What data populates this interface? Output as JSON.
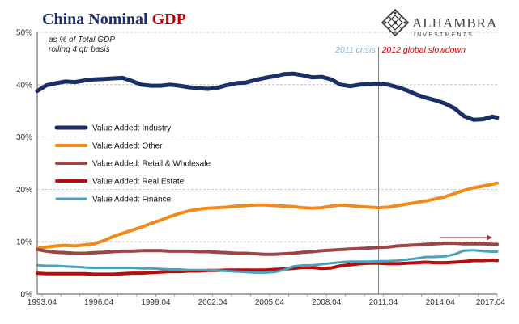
{
  "header": {
    "title_part1": "China Nominal ",
    "title_part2": "GDP",
    "title_color1": "#1f2d6b",
    "title_color2": "#c00000"
  },
  "brand": {
    "name": "ALHAMBRA",
    "sub": "INVESTMENTS",
    "icon": "diamond-lattice-logo"
  },
  "chart_data": {
    "type": "line",
    "subtitle_line1": "as % of Total GDP",
    "subtitle_line2": "rolling 4 qtr basis",
    "ylim": [
      0,
      50
    ],
    "yticks": [
      "0%",
      "10%",
      "20%",
      "30%",
      "40%",
      "50%"
    ],
    "xlim": [
      1993.0,
      2017.25
    ],
    "xtick_labels": [
      "1993.04",
      "1996.04",
      "1999.04",
      "2002.04",
      "2005.04",
      "2008.04",
      "2011.04",
      "2014.04",
      "2017.04"
    ],
    "grid": true,
    "legend_position": "middle-left",
    "annotations": [
      {
        "text": "2011 crisis",
        "x": 2011.0,
        "color": "#8fb0cc"
      },
      {
        "text": "2012 global slowdown",
        "x": 2011.0,
        "color": "#c00000"
      }
    ],
    "trend_arrow": {
      "x_start": 2014.25,
      "x_end": 2017.0,
      "y": 10.8,
      "color": "#a33a3a"
    },
    "series": [
      {
        "name": "Value Added: Industry",
        "color": "#1a2f66",
        "width": 5,
        "x": [
          1993.0,
          1993.5,
          1994.0,
          1994.5,
          1995.0,
          1995.5,
          1996.0,
          1996.5,
          1997.0,
          1997.5,
          1998.0,
          1998.5,
          1999.0,
          1999.5,
          2000.0,
          2000.5,
          2001.0,
          2001.5,
          2002.0,
          2002.5,
          2003.0,
          2003.5,
          2004.0,
          2004.5,
          2005.0,
          2005.5,
          2006.0,
          2006.5,
          2007.0,
          2007.5,
          2008.0,
          2008.5,
          2009.0,
          2009.5,
          2010.0,
          2010.5,
          2011.0,
          2011.5,
          2012.0,
          2012.5,
          2013.0,
          2013.5,
          2014.0,
          2014.5,
          2015.0,
          2015.5,
          2016.0,
          2016.5,
          2017.0,
          2017.25
        ],
        "values": [
          38.8,
          39.9,
          40.3,
          40.6,
          40.5,
          40.8,
          41.0,
          41.1,
          41.2,
          41.3,
          40.7,
          40.0,
          39.8,
          39.8,
          40.0,
          39.8,
          39.5,
          39.3,
          39.2,
          39.4,
          39.9,
          40.3,
          40.4,
          40.9,
          41.3,
          41.6,
          42.0,
          42.1,
          41.8,
          41.4,
          41.5,
          41.0,
          40.0,
          39.7,
          40.0,
          40.1,
          40.2,
          40.0,
          39.5,
          38.9,
          38.1,
          37.5,
          37.0,
          36.4,
          35.5,
          34.0,
          33.3,
          33.4,
          33.9,
          33.7
        ]
      },
      {
        "name": "Value Added: Other",
        "color": "#f28a1a",
        "width": 4,
        "x": [
          1993.0,
          1993.5,
          1994.0,
          1994.5,
          1995.0,
          1995.5,
          1996.0,
          1996.5,
          1997.0,
          1997.5,
          1998.0,
          1998.5,
          1999.0,
          1999.5,
          2000.0,
          2000.5,
          2001.0,
          2001.5,
          2002.0,
          2002.5,
          2003.0,
          2003.5,
          2004.0,
          2004.5,
          2005.0,
          2005.5,
          2006.0,
          2006.5,
          2007.0,
          2007.5,
          2008.0,
          2008.5,
          2009.0,
          2009.5,
          2010.0,
          2010.5,
          2011.0,
          2011.5,
          2012.0,
          2012.5,
          2013.0,
          2013.5,
          2014.0,
          2014.5,
          2015.0,
          2015.5,
          2016.0,
          2016.5,
          2017.0,
          2017.25
        ],
        "values": [
          8.8,
          9.0,
          9.2,
          9.3,
          9.2,
          9.4,
          9.6,
          10.2,
          11.0,
          11.6,
          12.2,
          12.8,
          13.5,
          14.1,
          14.8,
          15.4,
          15.9,
          16.2,
          16.4,
          16.5,
          16.6,
          16.8,
          16.9,
          17.0,
          17.0,
          16.9,
          16.8,
          16.7,
          16.5,
          16.4,
          16.5,
          16.8,
          17.0,
          16.9,
          16.7,
          16.6,
          16.5,
          16.6,
          16.9,
          17.2,
          17.5,
          17.8,
          18.2,
          18.6,
          19.2,
          19.8,
          20.3,
          20.6,
          21.0,
          21.2
        ]
      },
      {
        "name": "Value Added: Retail & Wholesale",
        "color": "#9b4545",
        "width": 4,
        "x": [
          1993.0,
          1993.5,
          1994.0,
          1994.5,
          1995.0,
          1995.5,
          1996.0,
          1996.5,
          1997.0,
          1997.5,
          1998.0,
          1998.5,
          1999.0,
          1999.5,
          2000.0,
          2000.5,
          2001.0,
          2001.5,
          2002.0,
          2002.5,
          2003.0,
          2003.5,
          2004.0,
          2004.5,
          2005.0,
          2005.5,
          2006.0,
          2006.5,
          2007.0,
          2007.5,
          2008.0,
          2008.5,
          2009.0,
          2009.5,
          2010.0,
          2010.5,
          2011.0,
          2011.5,
          2012.0,
          2012.5,
          2013.0,
          2013.5,
          2014.0,
          2014.5,
          2015.0,
          2015.5,
          2016.0,
          2016.5,
          2017.0,
          2017.25
        ],
        "values": [
          8.5,
          8.2,
          8.0,
          7.9,
          7.8,
          7.8,
          7.9,
          8.0,
          8.1,
          8.2,
          8.2,
          8.3,
          8.3,
          8.3,
          8.2,
          8.2,
          8.2,
          8.1,
          8.1,
          8.0,
          7.9,
          7.8,
          7.8,
          7.7,
          7.6,
          7.6,
          7.7,
          7.8,
          8.0,
          8.1,
          8.3,
          8.4,
          8.5,
          8.6,
          8.7,
          8.8,
          8.9,
          9.0,
          9.2,
          9.3,
          9.4,
          9.5,
          9.6,
          9.7,
          9.7,
          9.6,
          9.6,
          9.6,
          9.5,
          9.5
        ]
      },
      {
        "name": "Value Added: Real Estate",
        "color": "#b80d0d",
        "width": 4,
        "x": [
          1993.0,
          1993.5,
          1994.0,
          1994.5,
          1995.0,
          1995.5,
          1996.0,
          1996.5,
          1997.0,
          1997.5,
          1998.0,
          1998.5,
          1999.0,
          1999.5,
          2000.0,
          2000.5,
          2001.0,
          2001.5,
          2002.0,
          2002.5,
          2003.0,
          2003.5,
          2004.0,
          2004.5,
          2005.0,
          2005.5,
          2006.0,
          2006.5,
          2007.0,
          2007.5,
          2008.0,
          2008.5,
          2009.0,
          2009.5,
          2010.0,
          2010.5,
          2011.0,
          2011.5,
          2012.0,
          2012.5,
          2013.0,
          2013.5,
          2014.0,
          2014.5,
          2015.0,
          2015.5,
          2016.0,
          2016.5,
          2017.0,
          2017.25
        ],
        "values": [
          4.0,
          3.9,
          3.9,
          3.9,
          3.9,
          3.9,
          3.8,
          3.8,
          3.8,
          3.9,
          4.0,
          4.0,
          4.1,
          4.2,
          4.3,
          4.3,
          4.4,
          4.4,
          4.5,
          4.5,
          4.6,
          4.6,
          4.6,
          4.6,
          4.6,
          4.7,
          4.8,
          4.9,
          5.1,
          5.1,
          4.9,
          5.0,
          5.4,
          5.6,
          5.8,
          5.9,
          5.9,
          5.8,
          5.8,
          5.9,
          6.0,
          6.1,
          6.0,
          6.0,
          6.1,
          6.2,
          6.4,
          6.4,
          6.5,
          6.4
        ]
      },
      {
        "name": "Value Added: Finance",
        "color": "#4aa3bd",
        "width": 3,
        "x": [
          1993.0,
          1993.5,
          1994.0,
          1994.5,
          1995.0,
          1995.5,
          1996.0,
          1996.5,
          1997.0,
          1997.5,
          1998.0,
          1998.5,
          1999.0,
          1999.5,
          2000.0,
          2000.5,
          2001.0,
          2001.5,
          2002.0,
          2002.5,
          2003.0,
          2003.5,
          2004.0,
          2004.5,
          2005.0,
          2005.5,
          2006.0,
          2006.5,
          2007.0,
          2007.5,
          2008.0,
          2008.5,
          2009.0,
          2009.5,
          2010.0,
          2010.5,
          2011.0,
          2011.5,
          2012.0,
          2012.5,
          2013.0,
          2013.5,
          2014.0,
          2014.5,
          2015.0,
          2015.5,
          2016.0,
          2016.5,
          2017.0,
          2017.25
        ],
        "values": [
          5.5,
          5.4,
          5.4,
          5.3,
          5.2,
          5.1,
          5.0,
          5.0,
          5.0,
          5.0,
          5.0,
          4.9,
          4.9,
          4.8,
          4.7,
          4.7,
          4.6,
          4.6,
          4.6,
          4.5,
          4.4,
          4.3,
          4.2,
          4.1,
          4.1,
          4.2,
          4.6,
          5.3,
          5.5,
          5.5,
          5.7,
          5.9,
          6.1,
          6.2,
          6.2,
          6.2,
          6.3,
          6.3,
          6.4,
          6.6,
          6.8,
          7.1,
          7.1,
          7.2,
          7.6,
          8.3,
          8.4,
          8.2,
          8.1,
          8.1
        ]
      }
    ]
  }
}
